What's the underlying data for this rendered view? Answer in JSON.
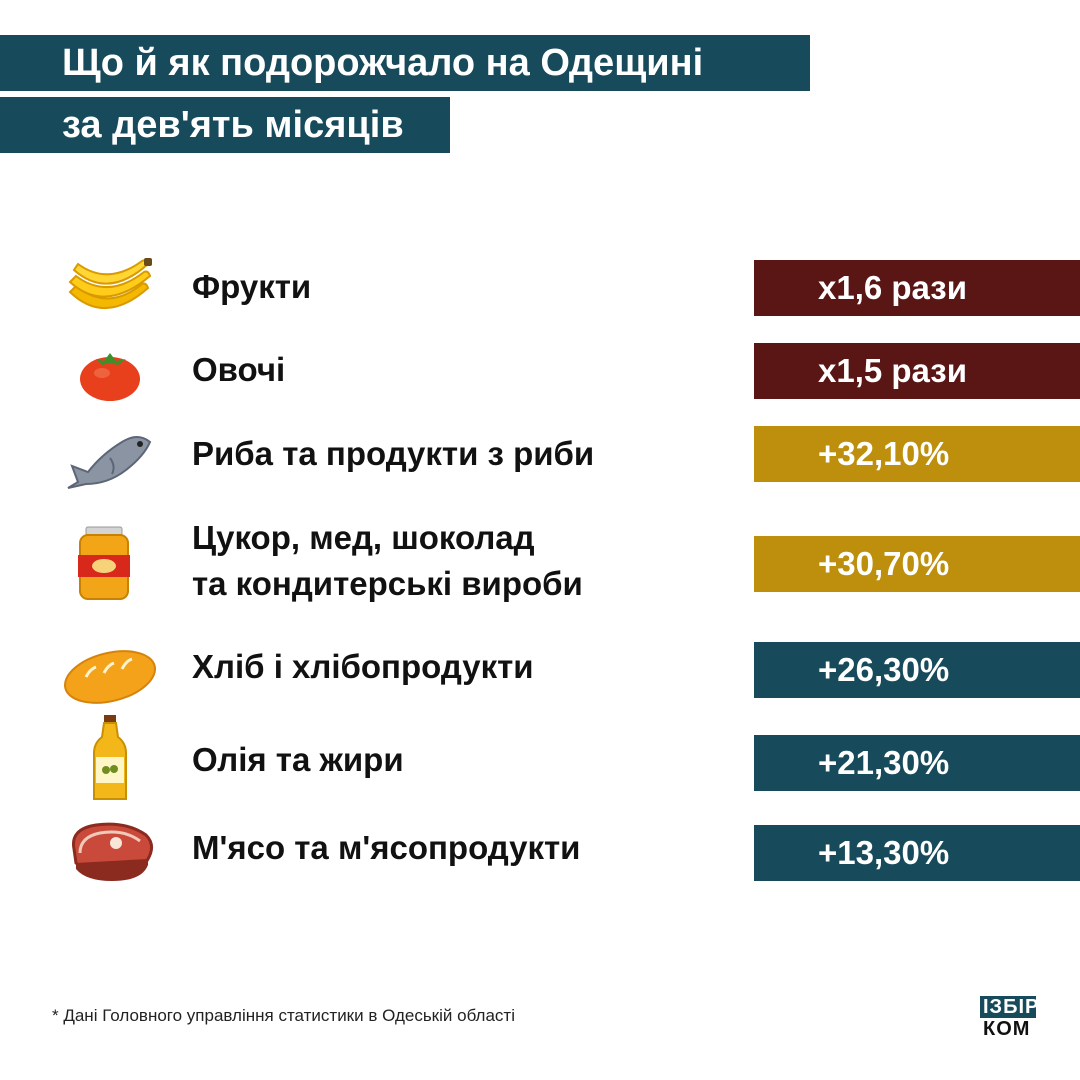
{
  "header": {
    "title_line1": "Що й як подорожчало на Одещині",
    "title_line2": "за дев'ять місяців"
  },
  "colors": {
    "title_bg": "#174a5b",
    "multiplier": "#5a1515",
    "high": "#bd8f0c",
    "medium": "#174a5b"
  },
  "chart_data": {
    "type": "table",
    "rows": [
      {
        "icon": "banana-icon",
        "label_lines": [
          "Фрукти"
        ],
        "value_text": "x1,6 рази",
        "color": "#5a1515"
      },
      {
        "icon": "tomato-icon",
        "label_lines": [
          "Овочі"
        ],
        "value_text": "x1,5 рази",
        "color": "#5a1515"
      },
      {
        "icon": "fish-icon",
        "label_lines": [
          "Риба та продукти з риби"
        ],
        "value_text": "+32,10%",
        "color": "#bd8f0c"
      },
      {
        "icon": "honey-jar-icon",
        "label_lines": [
          "Цукор, мед, шоколад",
          "та кондитерські вироби"
        ],
        "value_text": "+30,70%",
        "color": "#bd8f0c"
      },
      {
        "icon": "bread-icon",
        "label_lines": [
          "Хліб і хлібопродукти"
        ],
        "value_text": "+26,30%",
        "color": "#174a5b"
      },
      {
        "icon": "oil-bottle-icon",
        "label_lines": [
          "Олія та жири"
        ],
        "value_text": "+21,30%",
        "color": "#174a5b"
      },
      {
        "icon": "meat-icon",
        "label_lines": [
          "М'ясо та м'ясопродукти"
        ],
        "value_text": "+13,30%",
        "color": "#174a5b"
      }
    ]
  },
  "footnote": "* Дані Головного управління статистики в Одеській області",
  "logo": {
    "line1": "ІЗБІР",
    "line2": "КОМ"
  }
}
